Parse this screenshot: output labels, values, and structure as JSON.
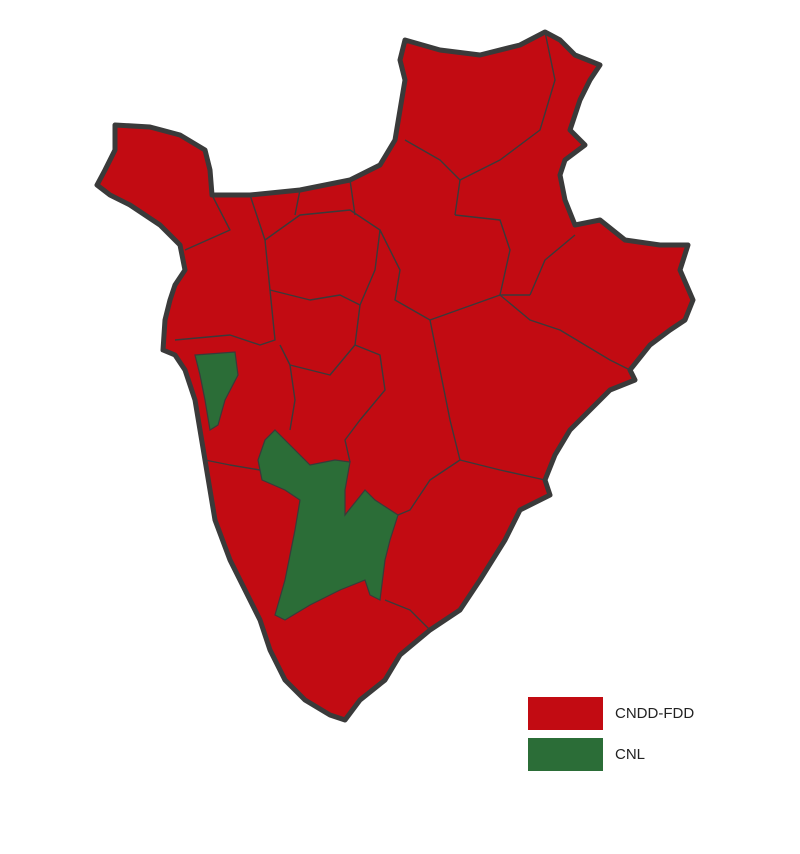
{
  "legend": {
    "items": [
      {
        "label": "CNDD-FDD",
        "color": "#c20b12"
      },
      {
        "label": "CNL",
        "color": "#2b6d37"
      }
    ]
  }
}
